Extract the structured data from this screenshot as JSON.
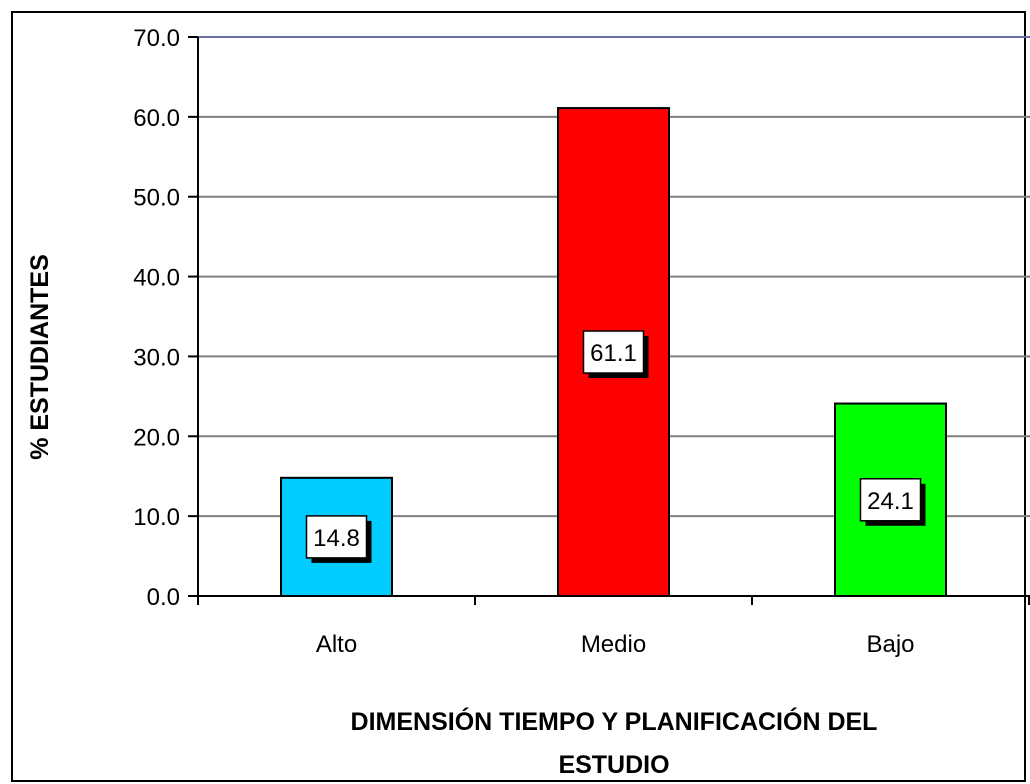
{
  "chart_data": {
    "type": "bar",
    "categories": [
      "Alto",
      "Medio",
      "Bajo"
    ],
    "values": [
      14.8,
      61.1,
      24.1
    ],
    "data_labels": [
      "14.8",
      "61.1",
      "24.1"
    ],
    "bar_colors": [
      "#00CCFF",
      "#FF0000",
      "#00FF00"
    ],
    "xlabel": "DIMENSIÓN TIEMPO Y PLANIFICACIÓN DEL ESTUDIO",
    "xlabel_lines": [
      "DIMENSIÓN TIEMPO Y PLANIFICACIÓN DEL",
      "ESTUDIO"
    ],
    "ylabel": "% ESTUDIANTES",
    "ylim": [
      0,
      70
    ],
    "yticks": [
      0,
      10,
      20,
      30,
      40,
      50,
      60,
      70
    ],
    "ytick_labels": [
      "0.0",
      "10.0",
      "20.0",
      "30.0",
      "40.0",
      "50.0",
      "60.0",
      "70.0"
    ],
    "grid": true,
    "legend": false
  }
}
